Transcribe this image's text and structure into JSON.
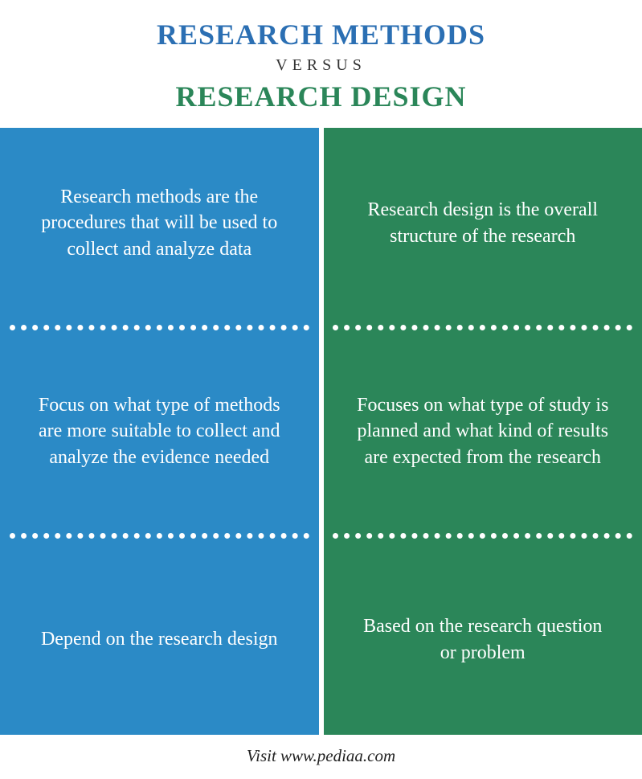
{
  "header": {
    "title_top": "RESEARCH METHODS",
    "versus": "VERSUS",
    "title_bottom": "RESEARCH DESIGN"
  },
  "colors": {
    "left_bg": "#2b8ac6",
    "right_bg": "#2b8659",
    "title_top_color": "#2b6fb3",
    "title_bottom_color": "#2b8659",
    "versus_color": "#333333",
    "cell_text": "#ffffff",
    "footer_text": "#222222",
    "background": "#ffffff"
  },
  "rows": [
    {
      "left": "Research methods are the procedures that will be used to collect and analyze data",
      "right": "Research design is the overall structure of the research"
    },
    {
      "left": "Focus on what type of methods are more suitable to collect and analyze the evidence needed",
      "right": "Focuses on what type of study is planned and what kind of results are expected from the research"
    },
    {
      "left": "Depend on the research design",
      "right": "Based on the research question or problem"
    }
  ],
  "footer": {
    "text": "Visit www.pediaa.com"
  },
  "style": {
    "title_fontsize": 36,
    "versus_fontsize": 20,
    "cell_fontsize": 24,
    "footer_fontsize": 21,
    "dash_size": 7
  }
}
